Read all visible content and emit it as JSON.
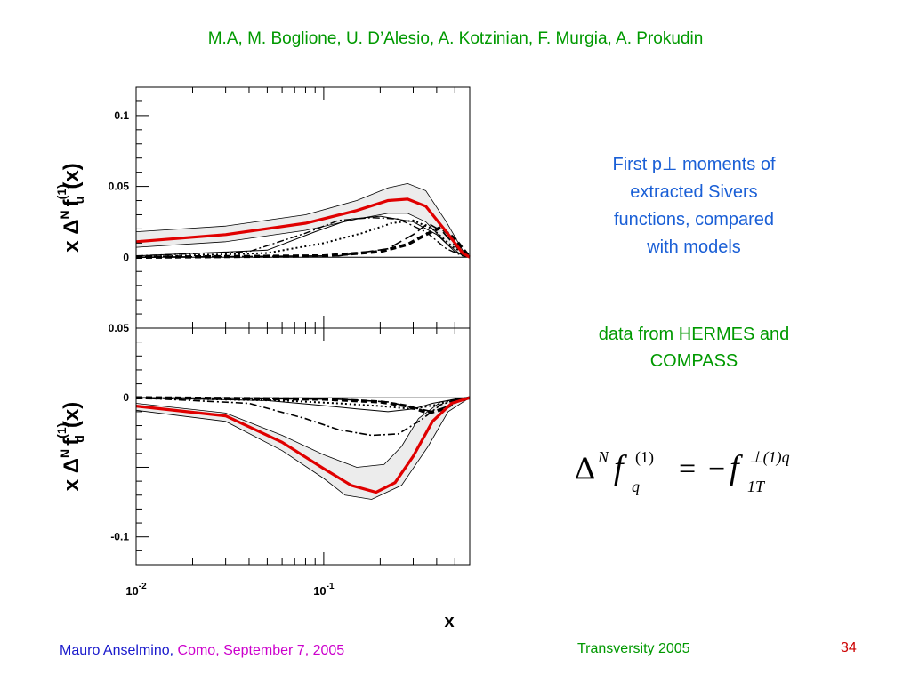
{
  "header": {
    "authors": "M.A, M. Boglione, U. D’Alesio, A. Kotzinian, F. Murgia, A. Prokudin"
  },
  "captions": {
    "main_lines": [
      "First p⊥ moments of",
      "extracted Sivers",
      "functions, compared",
      "with models"
    ],
    "data_source_lines": [
      "data from HERMES and",
      "COMPASS"
    ]
  },
  "formula": {
    "lhs_delta": "Δ",
    "lhs_N": "N",
    "lhs_f": "f",
    "lhs_q": "q",
    "lhs_sup": "(1)",
    "equals": "=",
    "minus": "−",
    "rhs_f": "f",
    "rhs_sub": "1T",
    "rhs_sup": "⊥(1)q"
  },
  "footer": {
    "name": "Mauro Anselmino,",
    "place": "Como, September 7, 2005",
    "conference": "Transversity 2005",
    "page": "34"
  },
  "colors": {
    "green": "#009900",
    "blue": "#1a5fd6",
    "red": "#e00000",
    "band": "#ececec"
  },
  "chart_data": [
    {
      "type": "line",
      "panel": "top",
      "ylabel_main": "x Δ",
      "ylabel_N": "N",
      "ylabel_f": "f",
      "ylabel_sup": "(1)",
      "ylabel_sub": "u",
      "ylabel_tail": "(x)",
      "xscale": "log",
      "xlim": [
        0.01,
        0.6
      ],
      "ylim": [
        -0.05,
        0.12
      ],
      "yticks": [
        {
          "v": 0.1,
          "label": "0.1"
        },
        {
          "v": 0.05,
          "label": "0.05"
        },
        {
          "v": 0,
          "label": "0"
        }
      ],
      "band_upper": [
        [
          0.01,
          0.018
        ],
        [
          0.03,
          0.022
        ],
        [
          0.08,
          0.03
        ],
        [
          0.15,
          0.04
        ],
        [
          0.22,
          0.049
        ],
        [
          0.28,
          0.052
        ],
        [
          0.35,
          0.047
        ],
        [
          0.45,
          0.025
        ],
        [
          0.55,
          0.005
        ],
        [
          0.6,
          0.001
        ]
      ],
      "band_lower": [
        [
          0.01,
          0.007
        ],
        [
          0.03,
          0.011
        ],
        [
          0.08,
          0.019
        ],
        [
          0.15,
          0.027
        ],
        [
          0.22,
          0.031
        ],
        [
          0.28,
          0.031
        ],
        [
          0.35,
          0.025
        ],
        [
          0.45,
          0.01
        ],
        [
          0.55,
          0.001
        ],
        [
          0.6,
          0
        ]
      ],
      "central": [
        [
          0.01,
          0.011
        ],
        [
          0.03,
          0.016
        ],
        [
          0.08,
          0.024
        ],
        [
          0.15,
          0.033
        ],
        [
          0.22,
          0.04
        ],
        [
          0.28,
          0.041
        ],
        [
          0.35,
          0.036
        ],
        [
          0.45,
          0.018
        ],
        [
          0.55,
          0.003
        ],
        [
          0.6,
          0
        ]
      ],
      "models": [
        {
          "style": "dashdot",
          "width": 1.4,
          "points": [
            [
              0.01,
              0.001
            ],
            [
              0.04,
              0.004
            ],
            [
              0.08,
              0.017
            ],
            [
              0.12,
              0.026
            ],
            [
              0.18,
              0.028
            ],
            [
              0.25,
              0.027
            ],
            [
              0.35,
              0.018
            ],
            [
              0.45,
              0.006
            ],
            [
              0.55,
              0.001
            ],
            [
              0.6,
              0
            ]
          ]
        },
        {
          "style": "solid",
          "width": 1,
          "points": [
            [
              0.01,
              0.001
            ],
            [
              0.05,
              0.005
            ],
            [
              0.09,
              0.018
            ],
            [
              0.14,
              0.027
            ],
            [
              0.2,
              0.029
            ],
            [
              0.3,
              0.025
            ],
            [
              0.4,
              0.016
            ],
            [
              0.5,
              0.004
            ],
            [
              0.6,
              0
            ]
          ]
        },
        {
          "style": "dotted",
          "width": 2,
          "points": [
            [
              0.01,
              0
            ],
            [
              0.05,
              0.003
            ],
            [
              0.1,
              0.01
            ],
            [
              0.16,
              0.017
            ],
            [
              0.23,
              0.024
            ],
            [
              0.3,
              0.026
            ],
            [
              0.38,
              0.02
            ],
            [
              0.48,
              0.008
            ],
            [
              0.6,
              0
            ]
          ]
        },
        {
          "style": "dashed",
          "width": 3.5,
          "points": [
            [
              0.01,
              0
            ],
            [
              0.1,
              0.001
            ],
            [
              0.2,
              0.004
            ],
            [
              0.28,
              0.009
            ],
            [
              0.35,
              0.016
            ],
            [
              0.42,
              0.021
            ],
            [
              0.5,
              0.013
            ],
            [
              0.6,
              0
            ]
          ]
        },
        {
          "style": "longdash",
          "width": 1.6,
          "points": [
            [
              0.01,
              0
            ],
            [
              0.12,
              0.001
            ],
            [
              0.22,
              0.006
            ],
            [
              0.3,
              0.016
            ],
            [
              0.36,
              0.024
            ],
            [
              0.43,
              0.018
            ],
            [
              0.52,
              0.006
            ],
            [
              0.6,
              0
            ]
          ]
        }
      ]
    },
    {
      "type": "line",
      "panel": "bottom",
      "ylabel_main": "x Δ",
      "ylabel_N": "N",
      "ylabel_f": "f",
      "ylabel_sup": "(1)",
      "ylabel_sub": "d",
      "ylabel_tail": "(x)",
      "xlabel": "x",
      "xscale": "log",
      "xlim": [
        0.01,
        0.6
      ],
      "ylim": [
        -0.12,
        0.05
      ],
      "yticks": [
        {
          "v": 0.05,
          "label": "0.05"
        },
        {
          "v": 0,
          "label": "0"
        },
        {
          "v": -0.1,
          "label": "-0.1"
        }
      ],
      "xticks": [
        {
          "v": 0.01,
          "base": "10",
          "exp": "-2"
        },
        {
          "v": 0.1,
          "base": "10",
          "exp": "-1"
        }
      ],
      "band_upper": [
        [
          0.01,
          -0.004
        ],
        [
          0.03,
          -0.011
        ],
        [
          0.06,
          -0.027
        ],
        [
          0.1,
          -0.041
        ],
        [
          0.15,
          -0.05
        ],
        [
          0.21,
          -0.048
        ],
        [
          0.26,
          -0.035
        ],
        [
          0.32,
          -0.015
        ],
        [
          0.42,
          -0.003
        ],
        [
          0.6,
          0
        ]
      ],
      "band_lower": [
        [
          0.01,
          -0.009
        ],
        [
          0.03,
          -0.017
        ],
        [
          0.06,
          -0.038
        ],
        [
          0.1,
          -0.058
        ],
        [
          0.13,
          -0.07
        ],
        [
          0.18,
          -0.073
        ],
        [
          0.26,
          -0.063
        ],
        [
          0.36,
          -0.035
        ],
        [
          0.46,
          -0.01
        ],
        [
          0.6,
          0
        ]
      ],
      "central": [
        [
          0.01,
          -0.006
        ],
        [
          0.03,
          -0.013
        ],
        [
          0.06,
          -0.032
        ],
        [
          0.1,
          -0.051
        ],
        [
          0.14,
          -0.063
        ],
        [
          0.19,
          -0.068
        ],
        [
          0.24,
          -0.061
        ],
        [
          0.3,
          -0.042
        ],
        [
          0.38,
          -0.017
        ],
        [
          0.48,
          -0.004
        ],
        [
          0.6,
          0
        ]
      ],
      "models": [
        {
          "style": "dashdot",
          "width": 1.6,
          "points": [
            [
              0.01,
              0
            ],
            [
              0.04,
              -0.004
            ],
            [
              0.08,
              -0.015
            ],
            [
              0.12,
              -0.023
            ],
            [
              0.18,
              -0.027
            ],
            [
              0.25,
              -0.026
            ],
            [
              0.33,
              -0.016
            ],
            [
              0.42,
              -0.005
            ],
            [
              0.52,
              -0.001
            ],
            [
              0.6,
              0
            ]
          ]
        },
        {
          "style": "solid",
          "width": 1,
          "points": [
            [
              0.01,
              0
            ],
            [
              0.05,
              -0.002
            ],
            [
              0.09,
              -0.005
            ],
            [
              0.15,
              -0.008
            ],
            [
              0.22,
              -0.01
            ],
            [
              0.3,
              -0.008
            ],
            [
              0.38,
              -0.004
            ],
            [
              0.5,
              -0.001
            ],
            [
              0.6,
              0
            ]
          ]
        },
        {
          "style": "dotted",
          "width": 2,
          "points": [
            [
              0.01,
              0
            ],
            [
              0.06,
              -0.002
            ],
            [
              0.12,
              -0.004
            ],
            [
              0.2,
              -0.006
            ],
            [
              0.3,
              -0.008
            ],
            [
              0.4,
              -0.005
            ],
            [
              0.5,
              -0.001
            ],
            [
              0.6,
              0
            ]
          ]
        },
        {
          "style": "dashed",
          "width": 3.5,
          "points": [
            [
              0.01,
              0
            ],
            [
              0.1,
              -0.001
            ],
            [
              0.2,
              -0.003
            ],
            [
              0.28,
              -0.006
            ],
            [
              0.36,
              -0.011
            ],
            [
              0.44,
              -0.008
            ],
            [
              0.52,
              -0.002
            ],
            [
              0.6,
              0
            ]
          ]
        },
        {
          "style": "longdash",
          "width": 1.6,
          "points": [
            [
              0.01,
              0
            ],
            [
              0.12,
              -0.001
            ],
            [
              0.22,
              -0.003
            ],
            [
              0.3,
              -0.007
            ],
            [
              0.38,
              -0.01
            ],
            [
              0.46,
              -0.006
            ],
            [
              0.54,
              -0.001
            ],
            [
              0.6,
              0
            ]
          ]
        }
      ]
    }
  ]
}
